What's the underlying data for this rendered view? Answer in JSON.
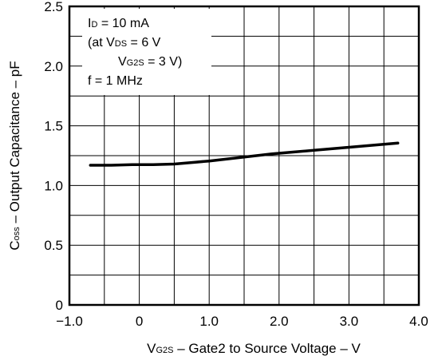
{
  "chart_data": {
    "type": "line",
    "xlim": [
      -1.0,
      4.0
    ],
    "ylim": [
      0,
      2.5
    ],
    "x_ticks": [
      "−1.0",
      "0",
      "1.0",
      "2.0",
      "3.0",
      "4.0"
    ],
    "y_ticks": [
      "0",
      "0.5",
      "1.0",
      "1.5",
      "2.0",
      "2.5"
    ],
    "x_tick_values": [
      -1.0,
      0,
      1.0,
      2.0,
      3.0,
      4.0
    ],
    "y_tick_values": [
      0,
      0.5,
      1.0,
      1.5,
      2.0,
      2.5
    ],
    "grid": true,
    "xlabel": {
      "main": "V",
      "sub": "G2S",
      "rest": " – Gate2 to Source Voltage – V"
    },
    "ylabel": {
      "main": "C",
      "sub": "oss",
      "rest": " – Output Capacitance – pF"
    },
    "annotations": {
      "line1": {
        "a": "I",
        "sub": "D",
        "b": " = 10 mA"
      },
      "line2": {
        "a": "(at V",
        "sub": "DS",
        "b": " = 6 V"
      },
      "line3": {
        "a": "V",
        "sub": "G2S",
        "b": " = 3 V)"
      },
      "line4": "f = 1 MHz"
    },
    "series": [
      {
        "x": [
          -0.7,
          -0.4,
          -0.1,
          0.2,
          0.5,
          0.8,
          1.0,
          1.3,
          1.6,
          1.9,
          2.2,
          2.5,
          2.8,
          3.1,
          3.4,
          3.7
        ],
        "y": [
          1.17,
          1.17,
          1.175,
          1.175,
          1.18,
          1.195,
          1.205,
          1.225,
          1.245,
          1.265,
          1.28,
          1.295,
          1.31,
          1.325,
          1.34,
          1.355
        ]
      }
    ]
  }
}
